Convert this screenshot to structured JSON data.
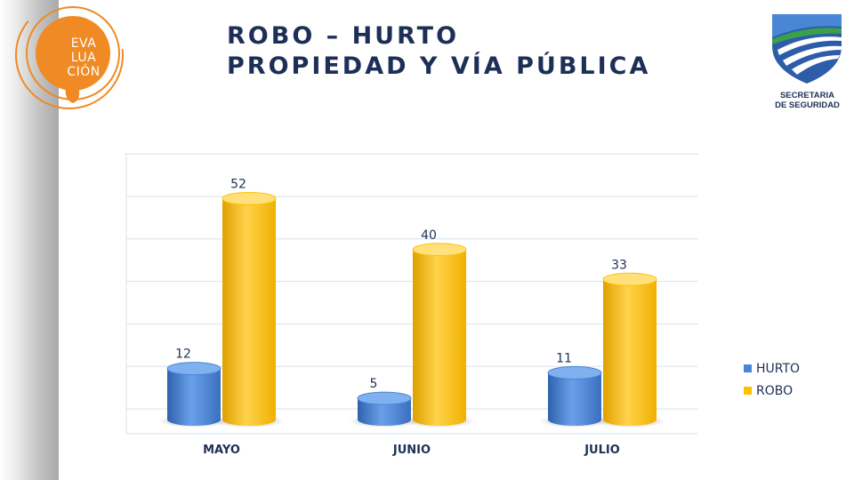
{
  "header": {
    "title_line1": "ROBO – HURTO",
    "title_line2": "PROPIEDAD Y VÍA PÚBLICA"
  },
  "logo_left": {
    "lines": [
      "EVA",
      "LUA",
      "CIÓN"
    ],
    "color": "#f08a24"
  },
  "logo_right": {
    "line1": "SECRETARIA",
    "line2": "DE SEGURIDAD"
  },
  "colors": {
    "hurto": "#4a86d6",
    "robo": "#ffc000",
    "text": "#1e2f57",
    "grid": "#d6e3ee"
  },
  "chart_data": {
    "type": "bar",
    "categories": [
      "MAYO",
      "JUNIO",
      "JULIO"
    ],
    "series": [
      {
        "name": "HURTO",
        "values": [
          12,
          5,
          11
        ]
      },
      {
        "name": "ROBO",
        "values": [
          52,
          40,
          33
        ]
      }
    ],
    "ylim": [
      0,
      65
    ],
    "grid": true,
    "legend": "right"
  }
}
